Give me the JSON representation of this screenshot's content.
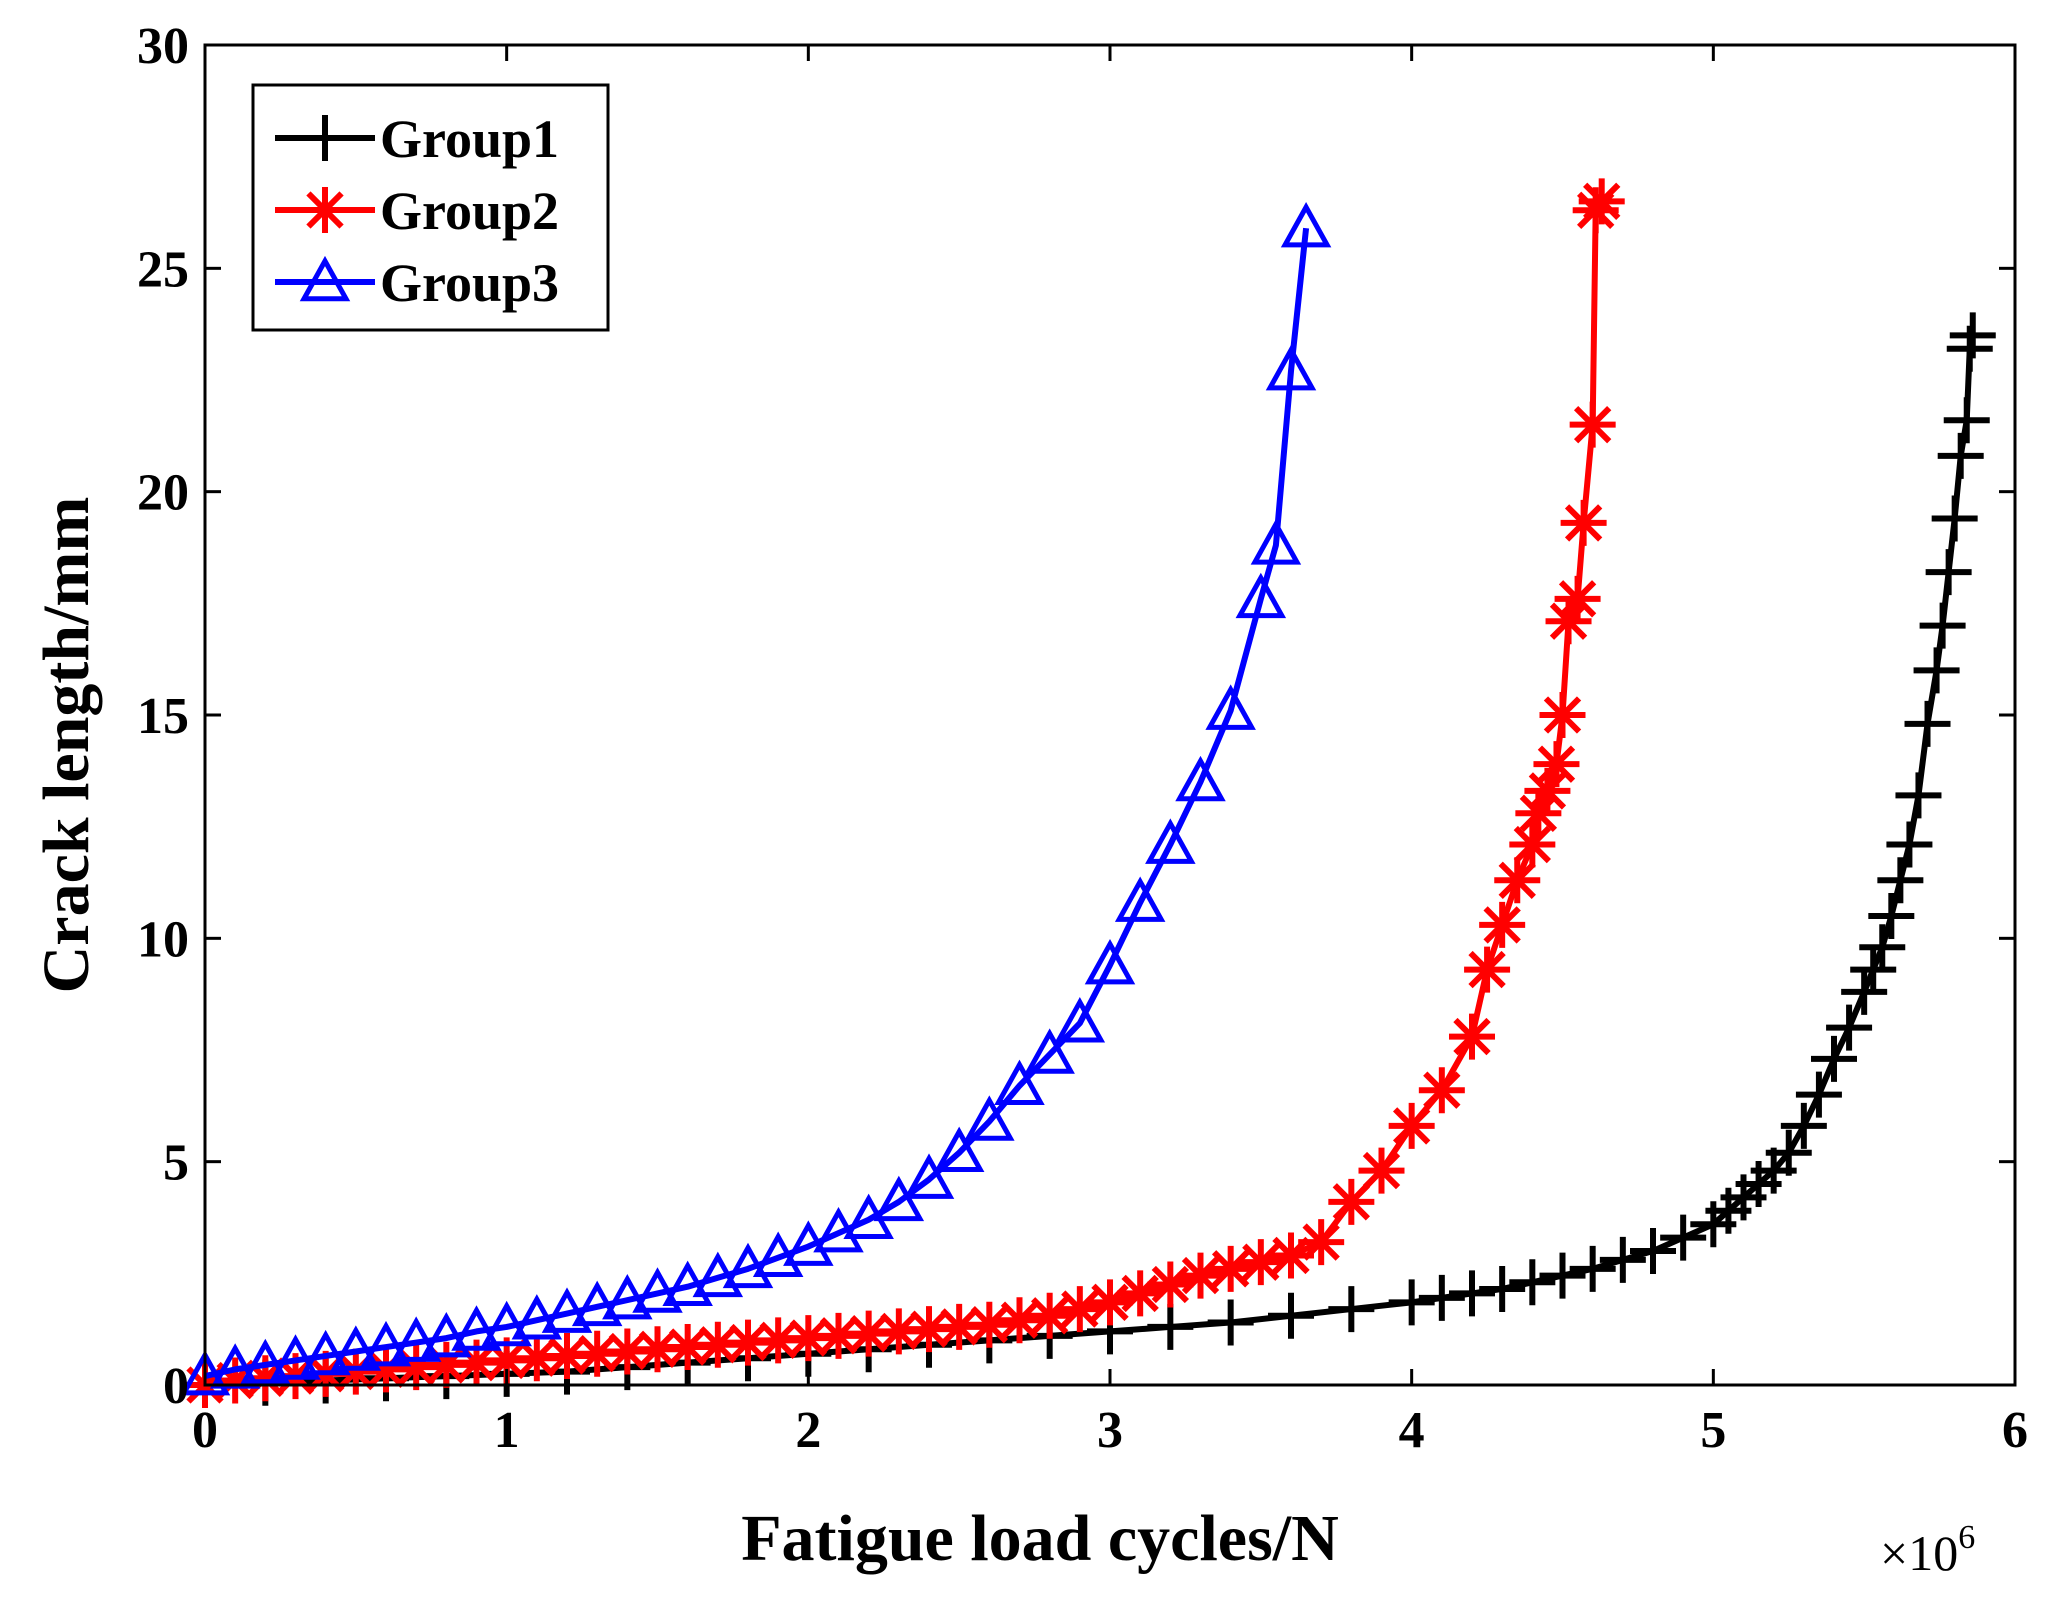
{
  "chart_data": {
    "type": "line",
    "title": "",
    "xlabel": "Fatigue load cycles/N",
    "ylabel": "Crack length/mm",
    "x_multiplier": {
      "base": "×10",
      "exponent": "6"
    },
    "xlim": [
      0,
      6
    ],
    "ylim": [
      0,
      30
    ],
    "xticks": [
      0,
      1,
      2,
      3,
      4,
      5,
      6
    ],
    "xtick_labels": [
      "0",
      "1",
      "2",
      "3",
      "4",
      "5",
      "6"
    ],
    "yticks": [
      0,
      5,
      10,
      15,
      20,
      25,
      30
    ],
    "ytick_labels": [
      "0",
      "5",
      "10",
      "15",
      "20",
      "25",
      "30"
    ],
    "grid": false,
    "legend_position": "top-left",
    "series": [
      {
        "name": "Group1",
        "color": "#000000",
        "marker": "plus",
        "x": [
          0,
          0.2,
          0.4,
          0.6,
          0.8,
          1.0,
          1.2,
          1.4,
          1.6,
          1.8,
          2.0,
          2.2,
          2.4,
          2.6,
          2.8,
          3.0,
          3.2,
          3.4,
          3.6,
          3.8,
          4.0,
          4.1,
          4.2,
          4.3,
          4.4,
          4.5,
          4.6,
          4.7,
          4.8,
          4.9,
          5.0,
          5.05,
          5.1,
          5.15,
          5.2,
          5.25,
          5.3,
          5.35,
          5.4,
          5.45,
          5.5,
          5.53,
          5.56,
          5.59,
          5.62,
          5.65,
          5.68,
          5.71,
          5.74,
          5.76,
          5.78,
          5.8,
          5.82,
          5.84,
          5.85,
          5.86
        ],
        "y": [
          0,
          0.05,
          0.1,
          0.15,
          0.2,
          0.25,
          0.3,
          0.4,
          0.5,
          0.6,
          0.7,
          0.8,
          0.9,
          1.0,
          1.1,
          1.2,
          1.3,
          1.4,
          1.55,
          1.7,
          1.85,
          1.95,
          2.05,
          2.15,
          2.3,
          2.45,
          2.6,
          2.8,
          3.0,
          3.3,
          3.6,
          3.9,
          4.2,
          4.5,
          4.8,
          5.2,
          5.8,
          6.5,
          7.3,
          8.0,
          8.8,
          9.3,
          9.8,
          10.5,
          11.3,
          12.1,
          13.2,
          14.8,
          16.0,
          17.0,
          18.2,
          19.4,
          20.8,
          21.6,
          23.2,
          23.5
        ]
      },
      {
        "name": "Group2",
        "color": "#ff0000",
        "marker": "asterisk",
        "x": [
          0,
          0.1,
          0.2,
          0.3,
          0.4,
          0.5,
          0.6,
          0.7,
          0.8,
          0.9,
          1.0,
          1.1,
          1.2,
          1.3,
          1.4,
          1.5,
          1.6,
          1.7,
          1.8,
          1.9,
          2.0,
          2.1,
          2.2,
          2.3,
          2.4,
          2.5,
          2.6,
          2.7,
          2.8,
          2.9,
          3.0,
          3.1,
          3.2,
          3.3,
          3.4,
          3.5,
          3.6,
          3.7,
          3.8,
          3.9,
          4.0,
          4.1,
          4.2,
          4.25,
          4.3,
          4.35,
          4.4,
          4.42,
          4.45,
          4.48,
          4.5,
          4.52,
          4.55,
          4.57,
          4.6,
          4.61,
          4.63
        ],
        "y": [
          0,
          0.1,
          0.15,
          0.2,
          0.25,
          0.3,
          0.35,
          0.4,
          0.45,
          0.5,
          0.55,
          0.6,
          0.65,
          0.7,
          0.75,
          0.8,
          0.85,
          0.9,
          0.95,
          1.0,
          1.05,
          1.1,
          1.15,
          1.2,
          1.25,
          1.3,
          1.35,
          1.45,
          1.55,
          1.7,
          1.85,
          2.05,
          2.25,
          2.45,
          2.6,
          2.75,
          2.9,
          3.2,
          4.1,
          4.8,
          5.8,
          6.6,
          7.8,
          9.3,
          10.3,
          11.3,
          12.1,
          12.8,
          13.3,
          13.9,
          15.0,
          17.1,
          17.6,
          19.3,
          21.5,
          26.3,
          26.5
        ]
      },
      {
        "name": "Group3",
        "color": "#0000ff",
        "marker": "triangle",
        "x": [
          0,
          0.1,
          0.2,
          0.3,
          0.4,
          0.5,
          0.6,
          0.7,
          0.8,
          0.9,
          1.0,
          1.1,
          1.2,
          1.3,
          1.4,
          1.5,
          1.6,
          1.7,
          1.8,
          1.9,
          2.0,
          2.1,
          2.2,
          2.3,
          2.4,
          2.5,
          2.6,
          2.7,
          2.8,
          2.9,
          3.0,
          3.1,
          3.2,
          3.3,
          3.4,
          3.5,
          3.55,
          3.6,
          3.65
        ],
        "y": [
          0.2,
          0.35,
          0.45,
          0.55,
          0.65,
          0.75,
          0.85,
          0.95,
          1.05,
          1.2,
          1.3,
          1.45,
          1.6,
          1.75,
          1.9,
          2.05,
          2.2,
          2.4,
          2.6,
          2.85,
          3.1,
          3.4,
          3.7,
          4.1,
          4.6,
          5.2,
          5.9,
          6.7,
          7.4,
          8.1,
          9.4,
          10.8,
          12.1,
          13.5,
          15.1,
          17.6,
          18.8,
          22.7,
          25.9
        ]
      }
    ]
  }
}
